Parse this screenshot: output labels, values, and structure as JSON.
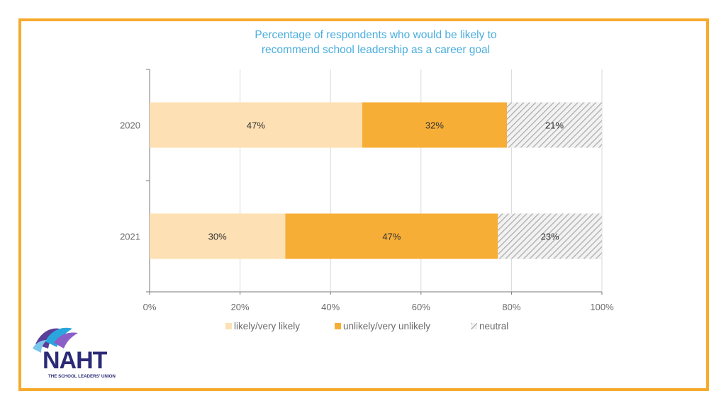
{
  "chart_data": {
    "type": "bar",
    "orientation": "horizontal",
    "stacked": true,
    "title": "Percentage of respondents who would be likely to recommend school leadership as a career goal",
    "title_lines": [
      "Percentage of respondents who would be likely to",
      "recommend school leadership as a career goal"
    ],
    "categories": [
      "2020",
      "2021"
    ],
    "series": [
      {
        "name": "likely/very likely",
        "values": [
          47,
          30
        ],
        "labels": [
          "47%",
          "30%"
        ],
        "color": "#fde0b3"
      },
      {
        "name": "unlikely/very unlikely",
        "values": [
          32,
          47
        ],
        "labels": [
          "32%",
          "47%"
        ],
        "color": "#f7ae36"
      },
      {
        "name": "neutral",
        "values": [
          21,
          23
        ],
        "labels": [
          "21%",
          "23%"
        ],
        "color": "#cfcfcf",
        "pattern": "hatch"
      }
    ],
    "xlim": [
      0,
      100
    ],
    "xticks": [
      0,
      20,
      40,
      60,
      80,
      100
    ],
    "xtick_labels": [
      "0%",
      "20%",
      "40%",
      "60%",
      "80%",
      "100%"
    ],
    "grid": true,
    "legend_position": "bottom",
    "colors": {
      "title": "#4aaede",
      "axis": "#7a7a7a",
      "grid": "#d9d9d9",
      "frame": "#f6ab2f"
    }
  },
  "logo": {
    "name": "NAHT",
    "tagline": "THE SCHOOL LEADERS' UNION"
  }
}
